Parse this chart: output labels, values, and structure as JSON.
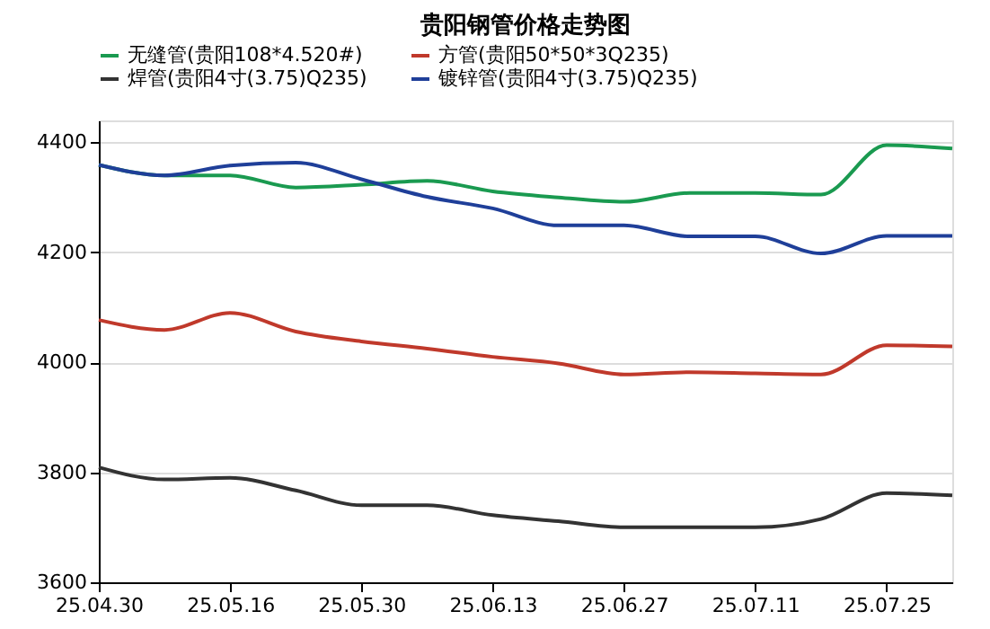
{
  "chart_data": {
    "type": "line",
    "title": "贵阳钢管价格走势图",
    "categories": [
      "25.04.30",
      null,
      "25.05.16",
      null,
      "25.05.30",
      null,
      "25.06.13",
      null,
      "25.06.27",
      null,
      "25.07.11",
      null,
      "25.07.25",
      null
    ],
    "series": [
      {
        "name": "无缝管(贵阳108*4.520#)",
        "color": "#1a9a50",
        "values": [
          4359,
          4340,
          4340,
          4318,
          4323,
          4330,
          4311,
          4300,
          4292,
          4308,
          4308,
          4305,
          4395,
          4389
        ]
      },
      {
        "name": "方管(贵阳50*50*3Q235)",
        "color": "#c0392b",
        "values": [
          4077,
          4059,
          4090,
          4056,
          4038,
          4025,
          4010,
          3998,
          3978,
          3982,
          3980,
          3978,
          4031,
          4029
        ]
      },
      {
        "name": "焊管(贵阳4寸(3.75)Q235)",
        "color": "#333333",
        "values": [
          3809,
          3787,
          3790,
          3767,
          3740,
          3740,
          3722,
          3711,
          3700,
          3700,
          3700,
          3715,
          3762,
          3758
        ]
      },
      {
        "name": "镀锌管(贵阳4寸(3.75)Q235)",
        "color": "#1f3f99",
        "values": [
          4359,
          4340,
          4358,
          4363,
          4333,
          4301,
          4280,
          4249,
          4249,
          4229,
          4229,
          4198,
          4230,
          4230
        ]
      }
    ],
    "ylim": [
      3600,
      4440
    ],
    "yticks": [
      3600,
      3800,
      4000,
      4200,
      4400
    ],
    "grid": "y",
    "legend": "top",
    "marker": "none",
    "line_style": "solid"
  }
}
